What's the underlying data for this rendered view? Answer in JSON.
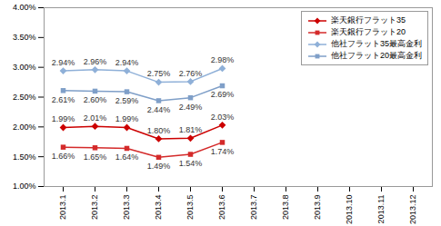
{
  "chart_data": {
    "type": "line",
    "categories": [
      "2013.1",
      "2013.2",
      "2013.3",
      "2013.4",
      "2013.5",
      "2013.6",
      "2013.7",
      "2013.8",
      "2013.9",
      "2013.10",
      "2013.11",
      "2013.12"
    ],
    "series": [
      {
        "name": "楽天銀行フラット35",
        "color": "#cc0000",
        "marker": "diamond",
        "values": [
          1.99,
          2.01,
          1.99,
          1.8,
          1.81,
          2.03,
          null,
          null,
          null,
          null,
          null,
          null
        ],
        "value_labels": [
          "1.99%",
          "2.01%",
          "1.99%",
          "1.80%",
          "1.81%",
          "2.03%",
          null,
          null,
          null,
          null,
          null,
          null
        ]
      },
      {
        "name": "楽天銀行フラット20",
        "color": "#d42a2a",
        "marker": "square",
        "values": [
          1.66,
          1.65,
          1.64,
          1.49,
          1.54,
          1.74,
          null,
          null,
          null,
          null,
          null,
          null
        ],
        "value_labels": [
          "1.66%",
          "1.65%",
          "1.64%",
          "1.49%",
          "1.54%",
          "1.74%",
          null,
          null,
          null,
          null,
          null,
          null
        ]
      },
      {
        "name": "他社フラット35最高金利",
        "color": "#8fb0d8",
        "marker": "diamond",
        "values": [
          2.94,
          2.96,
          2.94,
          2.75,
          2.76,
          2.98,
          null,
          null,
          null,
          null,
          null,
          null
        ],
        "value_labels": [
          "2.94%",
          "2.96%",
          "2.94%",
          "2.75%",
          "2.76%",
          "2.98%",
          null,
          null,
          null,
          null,
          null,
          null
        ]
      },
      {
        "name": "他社フラット20最高金利",
        "color": "#7f9fc8",
        "marker": "square",
        "values": [
          2.61,
          2.6,
          2.59,
          2.44,
          2.49,
          2.69,
          null,
          null,
          null,
          null,
          null,
          null
        ],
        "value_labels": [
          "2.61%",
          "2.60%",
          "2.59%",
          "2.44%",
          "2.49%",
          "2.69%",
          null,
          null,
          null,
          null,
          null,
          null
        ]
      }
    ],
    "ylim": [
      1.0,
      4.0
    ],
    "yticks": [
      {
        "value": 1.0,
        "label": "1.00%"
      },
      {
        "value": 1.5,
        "label": "1.50%"
      },
      {
        "value": 2.0,
        "label": "2.00%"
      },
      {
        "value": 2.5,
        "label": "2.50%"
      },
      {
        "value": 3.0,
        "label": "3.00%"
      },
      {
        "value": 3.5,
        "label": "3.50%"
      },
      {
        "value": 4.0,
        "label": "4.00%"
      }
    ],
    "grid": false,
    "legend": "top-right",
    "data_labels": true
  }
}
